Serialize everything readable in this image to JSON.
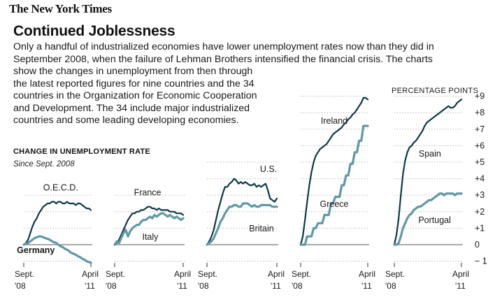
{
  "masthead": "The New York Times",
  "headline": "Continued Joblessness",
  "intro_lines": [
    "Only a handful of industrialized economies have lower unemployment rates now than they did in",
    "September 2008, when the failure of Lehman Brothers intensified the financial crisis. The charts",
    "show the changes in unemployment from then through",
    "the latest reported figures for nine countries and the 34",
    "countries in the Organization for Economic Cooperation",
    "and Development. The 34 include major industrialized",
    "countries and some leading developing economies."
  ],
  "section_label": "CHANGE IN UNEMPLOYMENT RATE",
  "section_sub": "Since Sept. 2008",
  "colors": {
    "dark": "#0f3947",
    "light": "#5f99a6",
    "grid": "#a8a8a8",
    "text": "#1a1a1a"
  },
  "chart_data": {
    "type": "line",
    "title": "Change in unemployment rate",
    "subtitle": "Since Sept. 2008",
    "ylabel": "PERCENTAGE POINTS",
    "y_ticks": [
      "+9",
      "+8",
      "+7",
      "+6",
      "+5",
      "+4",
      "+3",
      "+2",
      "+1",
      "0",
      "− 1"
    ],
    "x_start_label": [
      "Sept.",
      "'08"
    ],
    "x_end_label": [
      "April",
      "'11"
    ],
    "panels": [
      {
        "ylim": [
          -1.2,
          3.6
        ],
        "series": [
          {
            "name": "O.E.C.D.",
            "style": "dark",
            "values": [
              0,
              0.1,
              0.3,
              0.7,
              1.1,
              1.4,
              1.6,
              1.9,
              2.1,
              2.3,
              2.4,
              2.5,
              2.5,
              2.6,
              2.6,
              2.5,
              2.6,
              2.6,
              2.5,
              2.5,
              2.6,
              2.5,
              2.5,
              2.5,
              2.4,
              2.5,
              2.5,
              2.4,
              2.3,
              2.2,
              2.2,
              2.1
            ]
          },
          {
            "name": "Germany",
            "style": "light",
            "values": [
              0,
              0.05,
              0.1,
              0.2,
              0.3,
              0.4,
              0.45,
              0.5,
              0.5,
              0.45,
              0.4,
              0.35,
              0.3,
              0.2,
              0.15,
              0.1,
              0,
              -0.1,
              -0.15,
              -0.25,
              -0.3,
              -0.4,
              -0.5,
              -0.55,
              -0.6,
              -0.7,
              -0.75,
              -0.85,
              -0.9,
              -1.0,
              -1.05,
              -1.1
            ]
          }
        ]
      },
      {
        "ylim": [
          -1.2,
          3.6
        ],
        "series": [
          {
            "name": "France",
            "style": "dark",
            "values": [
              0,
              0.1,
              0.3,
              0.6,
              0.9,
              1.2,
              1.5,
              1.7,
              1.9,
              1.9,
              2.0,
              2.0,
              2.1,
              2.1,
              2.2,
              2.3,
              2.3,
              2.2,
              2.2,
              2.1,
              2.2,
              2.1,
              2.1,
              2.1,
              2.1,
              2.0,
              2.0,
              2.0,
              1.9,
              1.9,
              1.9,
              1.8
            ]
          },
          {
            "name": "Italy",
            "style": "light",
            "values": [
              0,
              0.2,
              0.1,
              0.4,
              0.7,
              0.9,
              0.5,
              0.8,
              1.0,
              1.1,
              1.2,
              1.2,
              1.4,
              1.5,
              1.5,
              1.6,
              1.7,
              1.6,
              1.8,
              1.7,
              1.8,
              1.9,
              1.9,
              1.8,
              1.7,
              1.8,
              1.7,
              1.6,
              1.7,
              1.6,
              1.5,
              1.6
            ]
          }
        ]
      },
      {
        "ylim": [
          -1.2,
          5.9
        ],
        "series": [
          {
            "name": "U.S.",
            "style": "dark",
            "values": [
              0,
              0.2,
              0.5,
              0.9,
              1.5,
              2.1,
              2.6,
              3.1,
              3.5,
              3.5,
              3.7,
              3.8,
              4.0,
              3.9,
              3.7,
              3.8,
              3.7,
              3.8,
              3.7,
              3.6,
              3.6,
              3.7,
              3.5,
              3.6,
              3.5,
              3.6,
              3.7,
              3.3,
              2.8,
              2.7,
              2.6,
              2.8
            ]
          },
          {
            "name": "Britain",
            "style": "light",
            "values": [
              0,
              0.1,
              0.2,
              0.4,
              0.7,
              1.0,
              1.4,
              1.6,
              1.9,
              2.1,
              2.3,
              2.3,
              2.4,
              2.4,
              2.3,
              2.3,
              2.5,
              2.5,
              2.5,
              2.4,
              2.3,
              2.4,
              2.3,
              2.3,
              2.4,
              2.4,
              2.4,
              2.4,
              2.4,
              2.3,
              2.3,
              2.3
            ]
          }
        ]
      },
      {
        "ylim": [
          -1.2,
          9.6
        ],
        "series": [
          {
            "name": "Ireland",
            "style": "dark",
            "values": [
              0,
              0.5,
              1.5,
              2.6,
              3.6,
              4.4,
              5.0,
              5.4,
              5.6,
              5.8,
              5.9,
              6.0,
              6.1,
              6.3,
              6.5,
              6.7,
              6.8,
              6.9,
              7.0,
              7.1,
              7.3,
              7.4,
              7.6,
              7.7,
              7.9,
              8.0,
              8.2,
              8.4,
              8.6,
              8.9,
              8.9,
              8.8
            ]
          },
          {
            "name": "Greece",
            "style": "light",
            "values": [
              0,
              0,
              0,
              0.5,
              0.5,
              0.5,
              1.0,
              1.0,
              1.3,
              1.3,
              1.3,
              1.8,
              1.8,
              1.8,
              2.5,
              2.5,
              2.9,
              2.9,
              2.9,
              3.6,
              3.6,
              4.2,
              4.2,
              4.9,
              4.9,
              5.6,
              5.6,
              6.3,
              6.3,
              7.2,
              7.2,
              7.2
            ]
          }
        ]
      },
      {
        "ylim": [
          -1.2,
          9.6
        ],
        "series": [
          {
            "name": "Spain",
            "style": "dark",
            "values": [
              0,
              0.6,
              1.6,
              3.0,
              4.3,
              5.1,
              5.6,
              5.9,
              6.0,
              6.2,
              6.3,
              6.5,
              6.7,
              6.9,
              7.2,
              7.4,
              7.5,
              7.6,
              7.7,
              7.8,
              7.9,
              8.0,
              8.1,
              8.2,
              8.3,
              8.4,
              8.3,
              8.3,
              8.4,
              8.6,
              8.7,
              8.8
            ]
          },
          {
            "name": "Portugal",
            "style": "light",
            "values": [
              0,
              0,
              0.1,
              0.5,
              1.0,
              1.3,
              1.6,
              1.8,
              1.9,
              2.1,
              2.2,
              2.3,
              2.3,
              2.4,
              2.5,
              2.6,
              2.7,
              2.7,
              2.8,
              2.9,
              3.0,
              3.1,
              3.1,
              3.0,
              3.1,
              3.1,
              3.1,
              3.1,
              3.0,
              3.1,
              3.1,
              3.1
            ]
          }
        ]
      }
    ]
  }
}
